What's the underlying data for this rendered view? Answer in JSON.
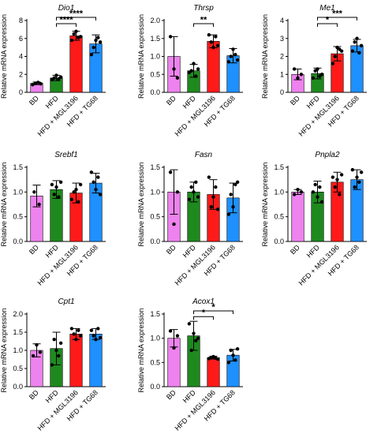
{
  "figure": {
    "ylabel": "Relative mRNA expression",
    "groups": [
      "BD",
      "HFD",
      "HFD + MGL3196",
      "HFD + TG68"
    ],
    "colors": [
      "#ee82ee",
      "#1e8a1e",
      "#ff1a1a",
      "#1e90ff"
    ]
  },
  "chart_data": [
    {
      "type": "bar",
      "title": "Dio1",
      "ylim": [
        0,
        8
      ],
      "ticks": [
        0,
        2,
        4,
        6,
        8
      ],
      "categories": [
        "BD",
        "HFD",
        "HFD + MGL3196",
        "HFD + TG68"
      ],
      "values": [
        1.0,
        1.6,
        6.3,
        5.4
      ],
      "errors": [
        0.15,
        0.3,
        0.5,
        1.0
      ],
      "points": [
        [
          0.85,
          1.0,
          1.1,
          0.95
        ],
        [
          1.4,
          1.6,
          1.9,
          1.5,
          1.7
        ],
        [
          5.8,
          6.5,
          6.8,
          6.1,
          6.2
        ],
        [
          4.2,
          5.0,
          5.8,
          6.1,
          5.6
        ]
      ],
      "significance": [
        {
          "from": 1,
          "to": 2,
          "label": "****"
        },
        {
          "from": 1,
          "to": 3,
          "label": "****"
        }
      ]
    },
    {
      "type": "bar",
      "title": "Thrsp",
      "ylim": [
        0,
        2.0
      ],
      "ticks": [
        0,
        0.5,
        1.0,
        1.5,
        2.0
      ],
      "categories": [
        "BD",
        "HFD",
        "HFD + MGL3196",
        "HFD + TG68"
      ],
      "values": [
        1.0,
        0.6,
        1.42,
        1.02
      ],
      "errors": [
        0.55,
        0.18,
        0.18,
        0.2
      ],
      "points": [
        [
          1.55,
          0.65,
          0.4
        ],
        [
          0.55,
          0.6,
          0.8,
          0.45,
          0.65
        ],
        [
          1.6,
          1.4,
          1.25,
          1.55,
          1.3
        ],
        [
          0.85,
          1.0,
          1.2,
          1.05,
          0.9
        ]
      ],
      "significance": [
        {
          "from": 1,
          "to": 2,
          "label": "**"
        }
      ]
    },
    {
      "type": "bar",
      "title": "Me1",
      "ylim": [
        0,
        4
      ],
      "ticks": [
        0,
        1,
        2,
        3,
        4
      ],
      "categories": [
        "BD",
        "HFD",
        "HFD + MGL3196",
        "HFD + TG68"
      ],
      "values": [
        1.0,
        1.05,
        2.15,
        2.6
      ],
      "errors": [
        0.3,
        0.3,
        0.4,
        0.35
      ],
      "points": [
        [
          1.3,
          0.8,
          1.0
        ],
        [
          0.8,
          1.2,
          1.3,
          0.9,
          1.0
        ],
        [
          1.6,
          2.0,
          2.5,
          2.4,
          2.3
        ],
        [
          2.3,
          2.8,
          3.0,
          2.2,
          2.6
        ]
      ],
      "significance": [
        {
          "from": 1,
          "to": 2,
          "label": "*"
        },
        {
          "from": 1,
          "to": 3,
          "label": "***"
        }
      ]
    },
    {
      "type": "bar",
      "title": "Srebf1",
      "ylim": [
        0,
        1.5
      ],
      "ticks": [
        0,
        0.5,
        1.0,
        1.5
      ],
      "categories": [
        "BD",
        "HFD",
        "HFD + MGL3196",
        "HFD + TG68"
      ],
      "values": [
        0.92,
        1.05,
        0.98,
        1.18
      ],
      "errors": [
        0.22,
        0.18,
        0.2,
        0.2
      ],
      "points": [
        [
          1.0,
          0.75
        ],
        [
          1.15,
          0.95,
          1.1,
          0.9,
          1.2
        ],
        [
          0.85,
          1.0,
          1.05,
          0.8,
          1.15
        ],
        [
          1.4,
          1.2,
          1.05,
          1.3,
          0.95
        ]
      ],
      "significance": []
    },
    {
      "type": "bar",
      "title": "Fasn",
      "ylim": [
        0,
        1.5
      ],
      "ticks": [
        0,
        0.5,
        1.0,
        1.5
      ],
      "categories": [
        "BD",
        "HFD",
        "HFD + MGL3196",
        "HFD + TG68"
      ],
      "values": [
        1.0,
        1.0,
        0.95,
        0.88
      ],
      "errors": [
        0.45,
        0.2,
        0.3,
        0.3
      ],
      "points": [
        [
          1.4,
          0.35,
          1.0
        ],
        [
          0.85,
          1.1,
          1.0,
          1.2,
          0.9
        ],
        [
          1.3,
          0.7,
          0.9,
          1.1,
          0.65
        ],
        [
          0.55,
          0.95,
          0.7,
          1.15,
          1.2
        ]
      ],
      "significance": []
    },
    {
      "type": "bar",
      "title": "Pnpla2",
      "ylim": [
        0,
        1.5
      ],
      "ticks": [
        0,
        0.5,
        1.0,
        1.5
      ],
      "categories": [
        "BD",
        "HFD",
        "HFD + MGL3196",
        "HFD + TG68"
      ],
      "values": [
        1.0,
        1.0,
        1.2,
        1.25
      ],
      "errors": [
        0.05,
        0.22,
        0.2,
        0.2
      ],
      "points": [
        [
          0.95,
          1.05,
          1.0
        ],
        [
          1.0,
          1.15,
          0.9,
          1.1,
          0.8
        ],
        [
          1.3,
          1.1,
          1.25,
          0.95,
          1.35
        ],
        [
          1.45,
          1.1,
          1.3,
          1.2,
          1.4
        ]
      ],
      "significance": []
    },
    {
      "type": "bar",
      "title": "Cpt1",
      "ylim": [
        0,
        2.0
      ],
      "ticks": [
        0,
        0.5,
        1.0,
        1.5,
        2.0
      ],
      "categories": [
        "BD",
        "HFD",
        "HFD + MGL3196",
        "HFD + TG68"
      ],
      "values": [
        1.0,
        1.05,
        1.45,
        1.45
      ],
      "errors": [
        0.18,
        0.45,
        0.15,
        0.15
      ],
      "points": [
        [
          0.85,
          1.15,
          0.95
        ],
        [
          0.6,
          1.3,
          1.0,
          0.85,
          1.2
        ],
        [
          1.6,
          1.45,
          1.3,
          1.55,
          1.4
        ],
        [
          1.55,
          1.4,
          1.3,
          1.6,
          1.35
        ]
      ],
      "significance": []
    },
    {
      "type": "bar",
      "title": "Acox1",
      "ylim": [
        0,
        1.5
      ],
      "ticks": [
        0,
        0.5,
        1.0,
        1.5
      ],
      "categories": [
        "BD",
        "HFD",
        "HFD + MGL3196",
        "HFD + TG68"
      ],
      "values": [
        1.0,
        1.05,
        0.6,
        0.65
      ],
      "errors": [
        0.18,
        0.3,
        0.03,
        0.12
      ],
      "points": [
        [
          1.15,
          0.8,
          1.05
        ],
        [
          1.3,
          0.75,
          1.1,
          0.95,
          1.0
        ],
        [
          0.58,
          0.6,
          0.62,
          0.59,
          0.57
        ],
        [
          0.5,
          0.75,
          0.65,
          0.55,
          0.78
        ]
      ],
      "significance": [
        {
          "from": 1,
          "to": 2,
          "label": "*"
        },
        {
          "from": 1,
          "to": 3,
          "label": "*"
        }
      ]
    }
  ]
}
